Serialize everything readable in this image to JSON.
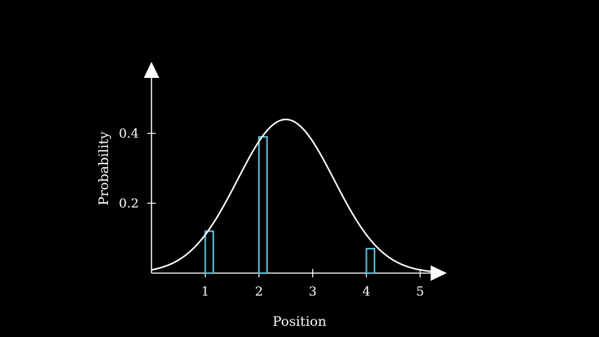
{
  "chart_data": {
    "type": "bar",
    "xlabel": "Position",
    "ylabel": "Probability",
    "xlim": [
      0,
      5.5
    ],
    "ylim": [
      0,
      0.56
    ],
    "x_ticks": [
      1,
      2,
      3,
      4,
      5
    ],
    "y_ticks": [
      0.2,
      0.4
    ],
    "x_tick_labels": [
      "1",
      "2",
      "3",
      "4",
      "5"
    ],
    "y_tick_labels": [
      "0.2",
      "0.4"
    ],
    "bars": [
      {
        "x": 1.0,
        "width": 0.15,
        "value": 0.12
      },
      {
        "x": 2.0,
        "width": 0.15,
        "value": 0.39
      },
      {
        "x": 4.0,
        "width": 0.15,
        "value": 0.07
      }
    ],
    "curve": {
      "type": "normal",
      "mean": 2.5,
      "sd": 0.9,
      "peak": 0.44,
      "x_range": [
        0,
        5.3
      ]
    },
    "colors": {
      "background": "#000000",
      "axes": "#ffffff",
      "curve": "#ffffff",
      "bars": "#5bc0de"
    }
  }
}
